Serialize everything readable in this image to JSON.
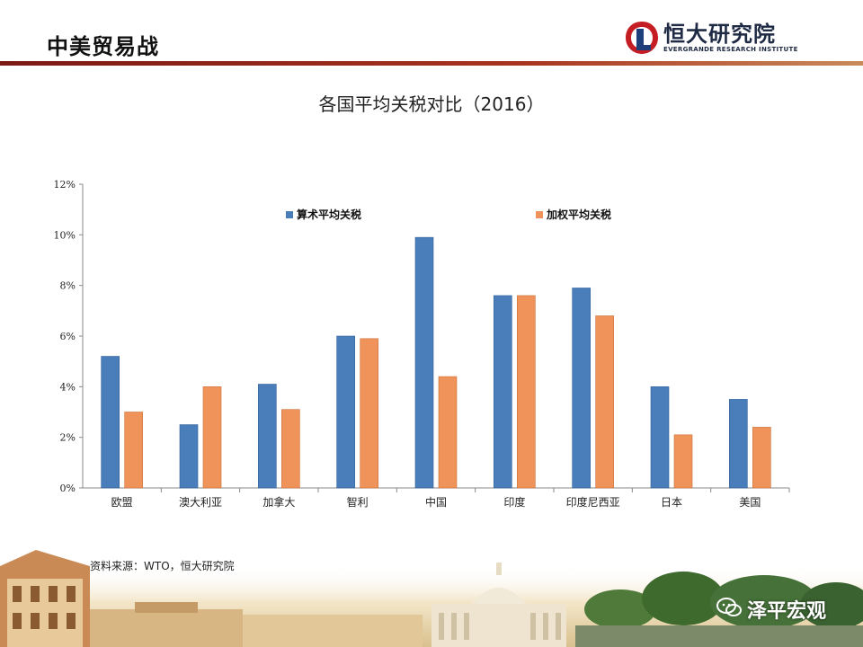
{
  "header": {
    "title": "中美贸易战"
  },
  "logo": {
    "name_cn": "恒大研究院",
    "name_en": "EVERGRANDE RESEARCH INSTITUTE"
  },
  "source_note": "资料来源：WTO，恒大研究院",
  "watermark": {
    "text": "泽平宏观"
  },
  "colors": {
    "series_arith": "#4a7ebb",
    "series_weighted": "#f0935a",
    "header_rule": "#a8321f"
  },
  "chart_data": {
    "type": "bar",
    "title": "各国平均关税对比（2016）",
    "categories": [
      "欧盟",
      "澳大利亚",
      "加拿大",
      "智利",
      "中国",
      "印度",
      "印度尼西亚",
      "日本",
      "美国"
    ],
    "series": [
      {
        "name": "算术平均关税",
        "values": [
          5.2,
          2.5,
          4.1,
          6.0,
          9.9,
          7.6,
          7.9,
          4.0,
          3.5
        ]
      },
      {
        "name": "加权平均关税",
        "values": [
          3.0,
          4.0,
          3.1,
          5.9,
          4.4,
          7.6,
          6.8,
          2.1,
          2.4
        ]
      }
    ],
    "yticks": [
      "0%",
      "2%",
      "4%",
      "6%",
      "8%",
      "10%",
      "12%"
    ],
    "ylim": [
      0,
      12
    ],
    "legend": "top",
    "grid": false
  }
}
